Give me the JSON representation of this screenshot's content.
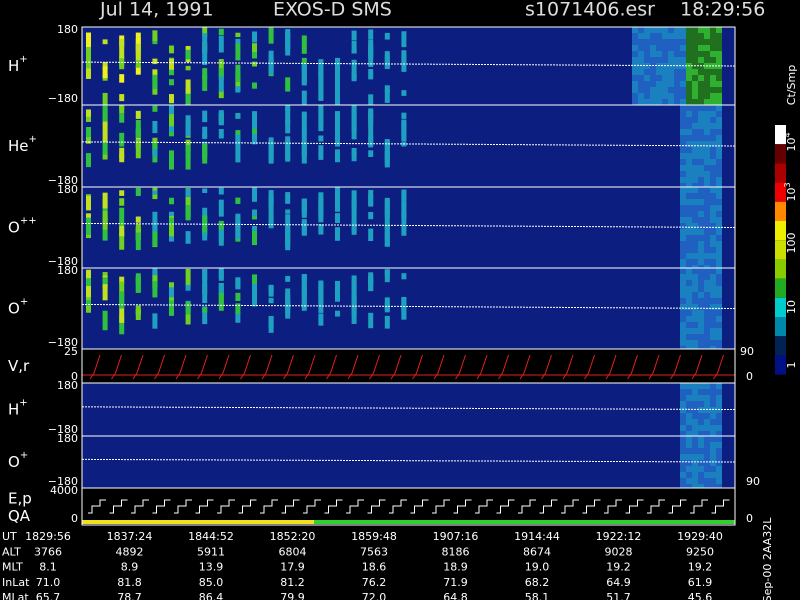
{
  "header": {
    "date": "Jul 14, 1991",
    "instrument": "EXOS-D SMS",
    "file": "s1071406.esr",
    "time": "18:29:56"
  },
  "panels": [
    {
      "label": "H",
      "sup": "+",
      "top": "180",
      "bottom": "−180"
    },
    {
      "label": "He",
      "sup": "+",
      "bottom": "−180"
    },
    {
      "label": "O",
      "sup": "++",
      "top": "180",
      "bottom": "−180"
    },
    {
      "label": "O",
      "sup": "+",
      "top": "180",
      "bottom": "−180"
    },
    {
      "label": "V,r",
      "top": "25",
      "bottom": "0",
      "right_top": "90",
      "right_bottom": "0"
    },
    {
      "label": "H",
      "sup": "+",
      "top": "180",
      "bottom": "−180"
    },
    {
      "label": "O",
      "sup": "+",
      "top": "180",
      "bottom": "−180",
      "right_bottom": "90"
    },
    {
      "label": "E,p",
      "label2": "QA",
      "top": "4000",
      "bottom": "0",
      "right_bottom": "0"
    }
  ],
  "colorbar": {
    "unit": "Ct/Smp",
    "labels": [
      {
        "base": "10",
        "exp": "4"
      },
      {
        "base": "10",
        "exp": "3"
      },
      {
        "base": "100"
      },
      {
        "base": "10"
      },
      {
        "base": "1"
      }
    ]
  },
  "table": {
    "rows": [
      [
        "UT",
        "1829:56",
        "1837:24",
        "1844:52",
        "1852:20",
        "1859:48",
        "1907:16",
        "1914:44",
        "1922:12",
        "1929:40"
      ],
      [
        "ALT",
        "3766",
        "4892",
        "5911",
        "6804",
        "7563",
        "8186",
        "8674",
        "9028",
        "9250"
      ],
      [
        "MLT",
        "8.1",
        "8.9",
        "13.9",
        "17.9",
        "18.6",
        "18.9",
        "19.0",
        "19.2",
        "19.2"
      ],
      [
        "InLat",
        "71.0",
        "81.8",
        "85.0",
        "81.2",
        "76.2",
        "71.9",
        "68.2",
        "64.9",
        "61.9"
      ],
      [
        "MLat",
        "65.7",
        "78.7",
        "86.4",
        "79.9",
        "72.0",
        "64.8",
        "58.1",
        "51.7",
        "45.6"
      ]
    ]
  },
  "footer": {
    "code": "Sep-00  2AA32L"
  }
}
